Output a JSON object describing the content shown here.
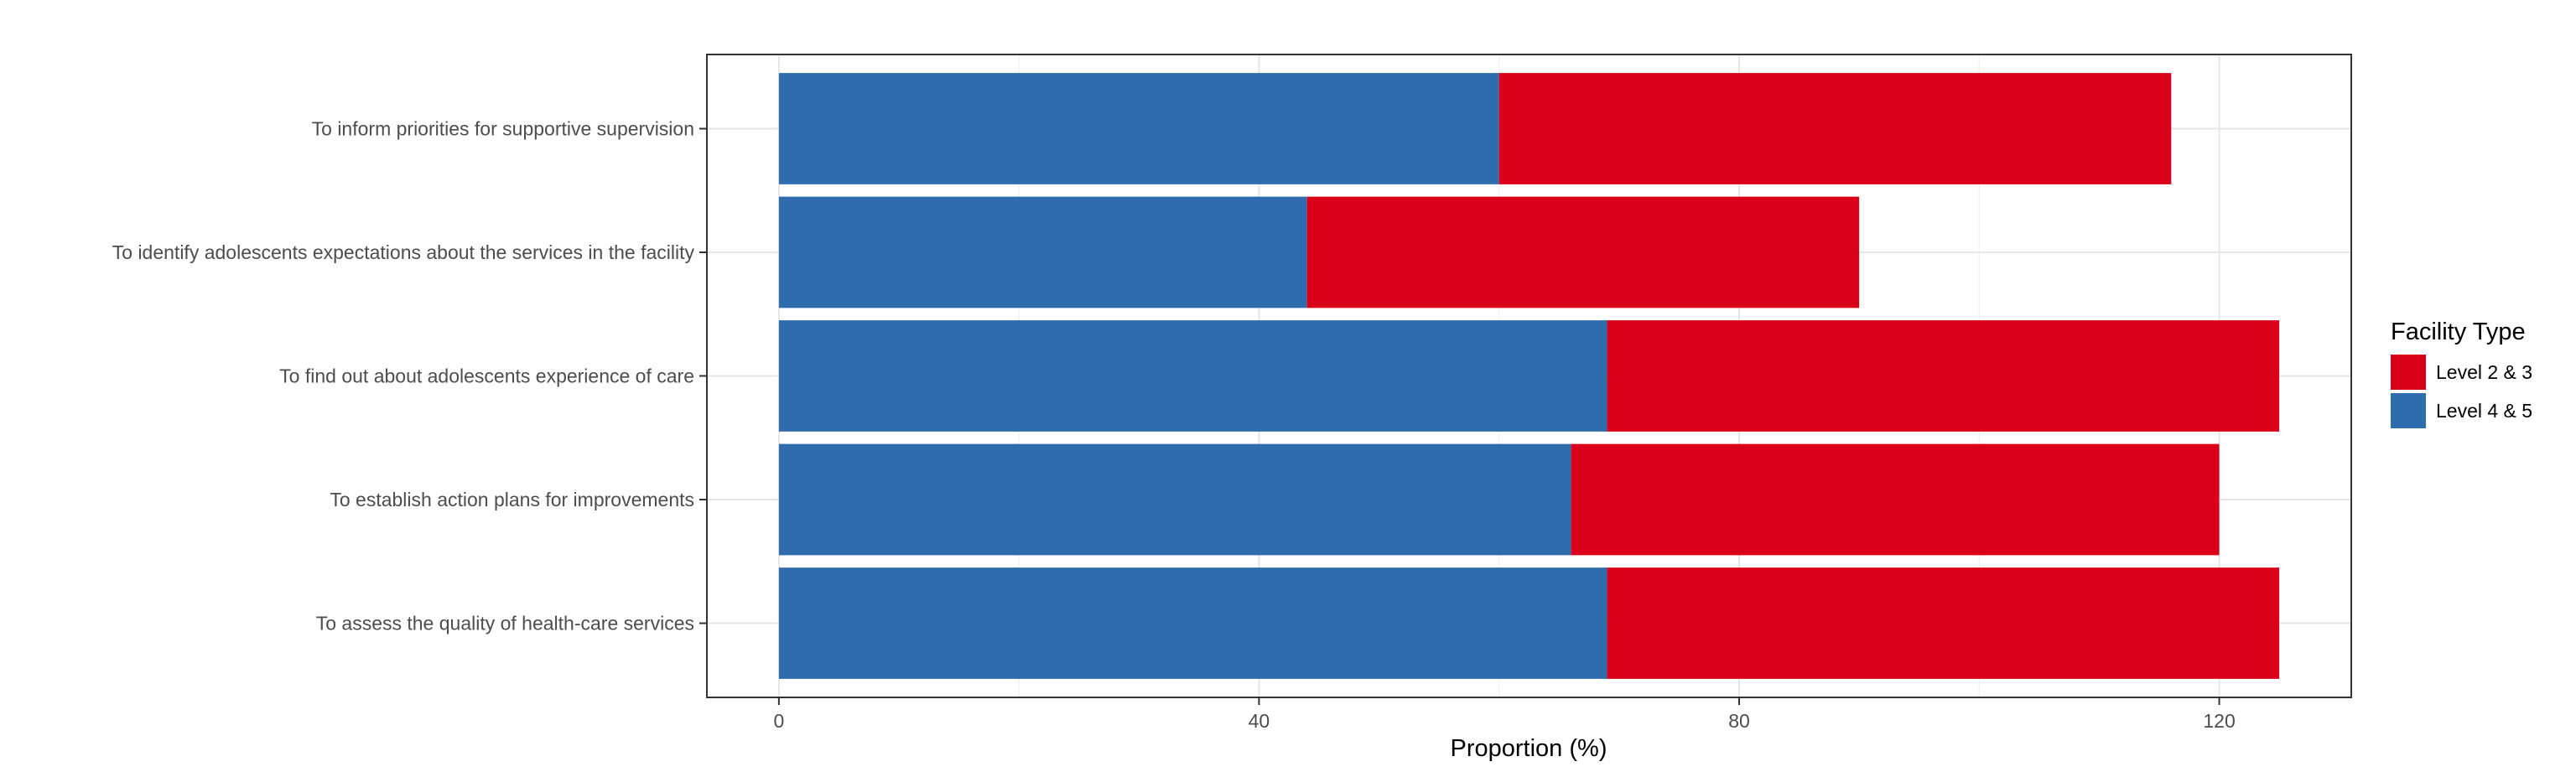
{
  "chart_data": {
    "type": "bar",
    "orientation": "horizontal",
    "stacked": true,
    "categories": [
      "To inform priorities for supportive supervision",
      "To identify adolescents expectations about the services in the facility",
      "To find out about adolescents experience of care",
      "To establish action plans for improvements",
      "To assess the quality of health-care services"
    ],
    "series": [
      {
        "name": "Level 4 & 5",
        "color": "#2E6CAD",
        "values": [
          60,
          44,
          69,
          66,
          69
        ]
      },
      {
        "name": "Level 2 & 3",
        "color": "#DA0019",
        "values": [
          56,
          46,
          56,
          54,
          56
        ]
      }
    ],
    "xlabel": "Proportion (%)",
    "ylabel": "",
    "xlim": [
      -6,
      131
    ],
    "xticks": [
      0,
      40,
      80,
      120
    ],
    "grid": true,
    "legend": {
      "title": "Facility Type",
      "position": "right",
      "entries": [
        {
          "name": "Level 2 & 3",
          "color": "#DA0019"
        },
        {
          "name": "Level 4 & 5",
          "color": "#2E6CAD"
        }
      ]
    }
  }
}
